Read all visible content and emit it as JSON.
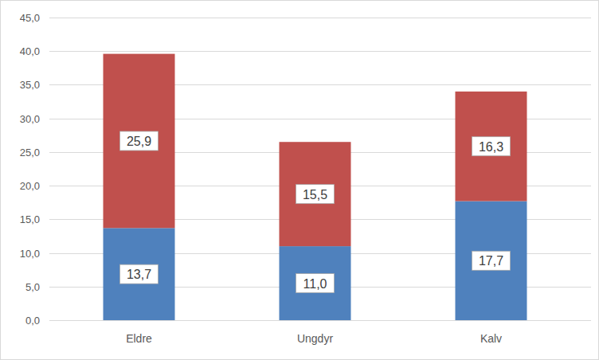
{
  "chart_data": {
    "type": "bar",
    "stacked": true,
    "data_labels": true,
    "grid": true,
    "categories": [
      "Eldre",
      "Ungdyr",
      "Kalv"
    ],
    "series": [
      {
        "color": "#4f81bd",
        "values": [
          13.7,
          11.0,
          17.7
        ],
        "value_labels": [
          "13,7",
          "11,0",
          "17,7"
        ]
      },
      {
        "color": "#c0504d",
        "values": [
          25.9,
          15.5,
          16.3
        ],
        "value_labels": [
          "25,9",
          "15,5",
          "16,3"
        ]
      }
    ],
    "ylim": [
      0,
      45
    ],
    "yticks": [
      {
        "value": 0,
        "label": "0,0"
      },
      {
        "value": 5,
        "label": "5,0"
      },
      {
        "value": 10,
        "label": "10,0"
      },
      {
        "value": 15,
        "label": "15,0"
      },
      {
        "value": 20,
        "label": "20,0"
      },
      {
        "value": 25,
        "label": "25,0"
      },
      {
        "value": 30,
        "label": "30,0"
      },
      {
        "value": 35,
        "label": "35,0"
      },
      {
        "value": 40,
        "label": "40,0"
      },
      {
        "value": 45,
        "label": "45,0"
      }
    ]
  }
}
